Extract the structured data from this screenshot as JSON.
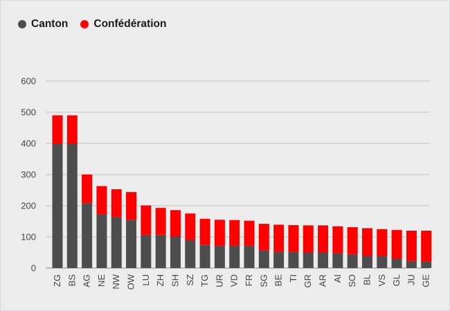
{
  "legend": {
    "canton_label": "Canton",
    "confederation_label": "Confédération"
  },
  "colors": {
    "canton": "#4d4d4d",
    "confederation": "#ff0000",
    "grid": "#bfbfbf",
    "background": "#ececec"
  },
  "chart_data": {
    "type": "bar",
    "stacked": true,
    "title": "",
    "xlabel": "",
    "ylabel": "",
    "ylim": [
      0,
      600
    ],
    "yticks": [
      0,
      100,
      200,
      300,
      400,
      500,
      600
    ],
    "grid": true,
    "legend_position": "top-left",
    "categories": [
      "ZG",
      "BS",
      "AG",
      "NE",
      "NW",
      "OW",
      "LU",
      "ZH",
      "SH",
      "SZ",
      "TG",
      "UR",
      "VD",
      "FR",
      "SG",
      "BE",
      "TI",
      "GR",
      "AR",
      "AI",
      "SO",
      "BL",
      "VS",
      "GL",
      "JU",
      "GE"
    ],
    "series": [
      {
        "name": "Canton",
        "values": [
          400,
          400,
          207,
          172,
          163,
          155,
          107,
          107,
          100,
          90,
          75,
          72,
          72,
          72,
          57,
          52,
          52,
          50,
          50,
          48,
          45,
          40,
          38,
          30,
          23,
          22
        ]
      },
      {
        "name": "Confédération",
        "values": [
          90,
          90,
          93,
          91,
          90,
          89,
          94,
          86,
          86,
          85,
          83,
          83,
          82,
          80,
          85,
          87,
          86,
          87,
          87,
          86,
          86,
          88,
          87,
          92,
          97,
          98
        ]
      }
    ]
  }
}
